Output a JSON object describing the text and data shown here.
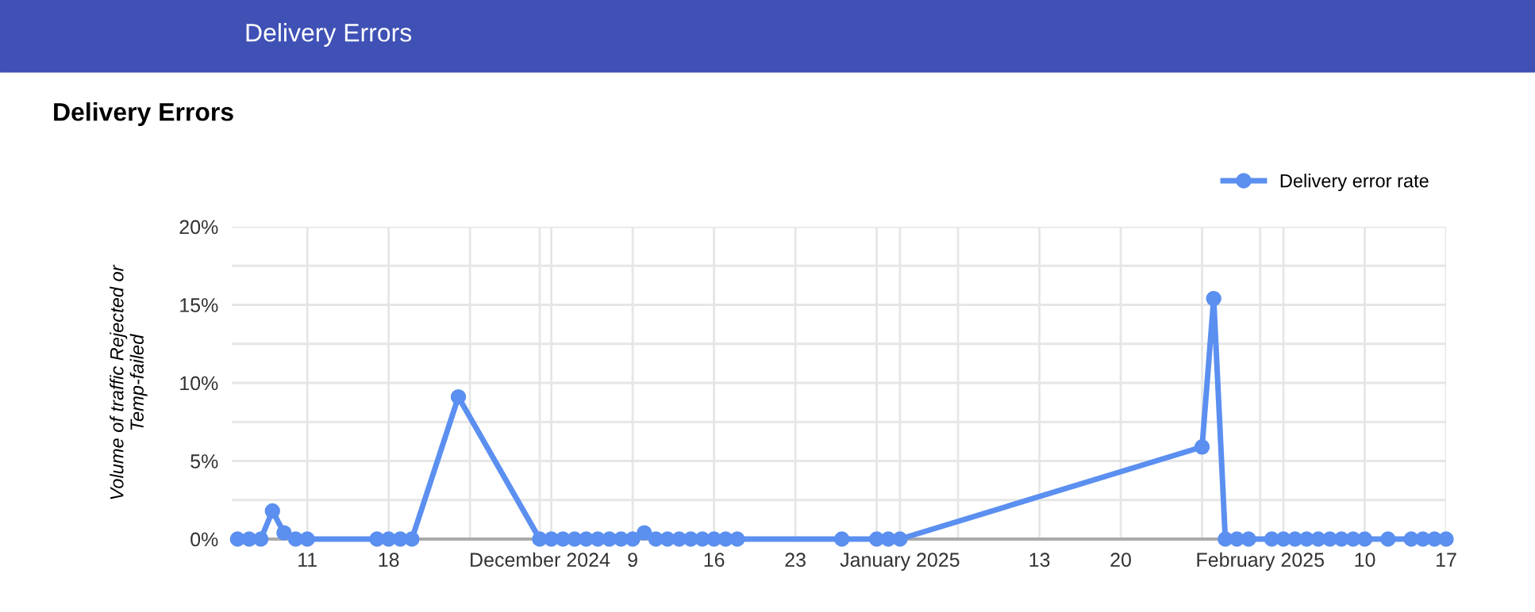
{
  "chart_data": {
    "type": "line",
    "title": "Delivery Errors",
    "ylabel": "Volume of traffic Rejected or Temp-failed",
    "annotations": [
      "Delivery Errors"
    ],
    "x": [
      "2024-11-05",
      "2024-11-06",
      "2024-11-07",
      "2024-11-08",
      "2024-11-09",
      "2024-11-10",
      "2024-11-11",
      "2024-11-17",
      "2024-11-18",
      "2024-11-19",
      "2024-11-20",
      "2024-11-24",
      "2024-12-01",
      "2024-12-02",
      "2024-12-03",
      "2024-12-04",
      "2024-12-05",
      "2024-12-06",
      "2024-12-07",
      "2024-12-08",
      "2024-12-09",
      "2024-12-10",
      "2024-12-11",
      "2024-12-12",
      "2024-12-13",
      "2024-12-14",
      "2024-12-15",
      "2024-12-16",
      "2024-12-17",
      "2024-12-18",
      "2024-12-27",
      "2024-12-30",
      "2024-12-31",
      "2025-01-01",
      "2025-01-27",
      "2025-01-28",
      "2025-01-29",
      "2025-01-30",
      "2025-01-31",
      "2025-02-02",
      "2025-02-03",
      "2025-02-04",
      "2025-02-05",
      "2025-02-06",
      "2025-02-07",
      "2025-02-08",
      "2025-02-09",
      "2025-02-10",
      "2025-02-12",
      "2025-02-14",
      "2025-02-15",
      "2025-02-16",
      "2025-02-17"
    ],
    "series": [
      {
        "name": "Delivery error rate",
        "color": "#5b8ff0",
        "values": [
          0,
          0,
          0,
          1.8,
          0.4,
          0,
          0,
          0,
          0,
          0,
          0,
          9.1,
          0,
          0,
          0,
          0,
          0,
          0,
          0,
          0,
          0,
          0.4,
          0,
          0,
          0,
          0,
          0,
          0,
          0,
          0,
          0,
          0,
          0,
          0,
          5.9,
          15.4,
          0,
          0,
          0,
          0,
          0,
          0,
          0,
          0,
          0,
          0,
          0,
          0,
          0,
          0,
          0,
          0,
          0
        ]
      }
    ],
    "xlim": [
      "2024-11-04T12:00",
      "2025-02-17"
    ],
    "xticks": [
      {
        "value": "2024-11-11",
        "label": "11"
      },
      {
        "value": "2024-11-18",
        "label": "18"
      },
      {
        "value": "2024-11-25",
        "label": null
      },
      {
        "value": "2024-12-01",
        "label": "December 2024"
      },
      {
        "value": "2024-12-02",
        "label": null
      },
      {
        "value": "2024-12-09",
        "label": "9"
      },
      {
        "value": "2024-12-16",
        "label": "16"
      },
      {
        "value": "2024-12-23",
        "label": "23"
      },
      {
        "value": "2024-12-30",
        "label": null
      },
      {
        "value": "2025-01-01",
        "label": "January 2025"
      },
      {
        "value": "2025-01-06",
        "label": null
      },
      {
        "value": "2025-01-13",
        "label": "13"
      },
      {
        "value": "2025-01-20",
        "label": "20"
      },
      {
        "value": "2025-01-27",
        "label": null
      },
      {
        "value": "2025-02-01",
        "label": "February 2025"
      },
      {
        "value": "2025-02-03",
        "label": null
      },
      {
        "value": "2025-02-10",
        "label": "10"
      },
      {
        "value": "2025-02-17",
        "label": "17"
      }
    ],
    "ylim": [
      0,
      20
    ],
    "yticks": [
      {
        "value": 0,
        "label": "0%"
      },
      {
        "value": 2.5,
        "label": null
      },
      {
        "value": 5,
        "label": "5%"
      },
      {
        "value": 7.5,
        "label": null
      },
      {
        "value": 10,
        "label": "10%"
      },
      {
        "value": 12.5,
        "label": null
      },
      {
        "value": 15,
        "label": "15%"
      },
      {
        "value": 17.5,
        "label": null
      },
      {
        "value": 20,
        "label": "20%"
      }
    ],
    "grid": true,
    "legend": "top right",
    "marker": "circle",
    "line_style": "solid"
  }
}
